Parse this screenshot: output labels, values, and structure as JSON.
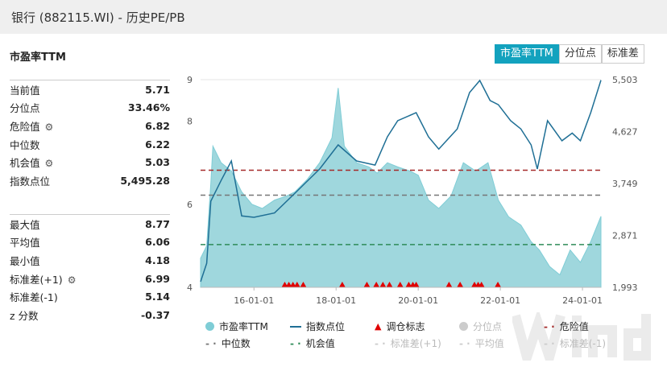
{
  "window": {
    "title": "银行 (882115.WI) - 历史PE/PB"
  },
  "panel": {
    "title": "市盈率TTM"
  },
  "stats_top": [
    {
      "label": "当前值",
      "value": "5.71",
      "gear": false
    },
    {
      "label": "分位点",
      "value": "33.46%",
      "gear": false
    },
    {
      "label": "危险值",
      "value": "6.82",
      "gear": true
    },
    {
      "label": "中位数",
      "value": "6.22",
      "gear": false
    },
    {
      "label": "机会值",
      "value": "5.03",
      "gear": true
    },
    {
      "label": "指数点位",
      "value": "5,495.28",
      "gear": false
    }
  ],
  "stats_bottom": [
    {
      "label": "最大值",
      "value": "8.77",
      "gear": false
    },
    {
      "label": "平均值",
      "value": "6.06",
      "gear": false
    },
    {
      "label": "最小值",
      "value": "4.18",
      "gear": false
    },
    {
      "label": "标准差(+1)",
      "value": "6.99",
      "gear": true
    },
    {
      "label": "标准差(-1)",
      "value": "5.14",
      "gear": false
    },
    {
      "label": "z 分数",
      "value": "-0.37",
      "gear": false
    }
  ],
  "tabs": [
    {
      "label": "市盈率TTM",
      "active": true
    },
    {
      "label": "分位点",
      "active": false
    },
    {
      "label": "标准差",
      "active": false
    }
  ],
  "legend": [
    {
      "label": "市盈率TTM",
      "type": "dot",
      "color": "#7fcdd6",
      "off": false
    },
    {
      "label": "指数点位",
      "type": "line",
      "color": "#1f6f95",
      "off": false
    },
    {
      "label": "调仓标志",
      "type": "tri",
      "color": "#e00000",
      "off": false
    },
    {
      "label": "分位点",
      "type": "dot",
      "color": "#ccc",
      "off": true
    },
    {
      "label": "危险值",
      "type": "dash",
      "color": "#a52a2a",
      "off": false
    },
    {
      "label": "中位数",
      "type": "dash",
      "color": "#777",
      "off": false
    },
    {
      "label": "机会值",
      "type": "dash",
      "color": "#2e8b57",
      "off": false
    },
    {
      "label": "标准差(+1)",
      "type": "dash",
      "color": "#ccc",
      "off": true
    },
    {
      "label": "平均值",
      "type": "dash",
      "color": "#ccc",
      "off": true
    },
    {
      "label": "标准差(-1)",
      "type": "dash",
      "color": "#ccc",
      "off": true
    }
  ],
  "watermark": "Wind",
  "chart_data": {
    "type": "area+line",
    "x_ticks": [
      "16-01-01",
      "18-01-01",
      "20-01-01",
      "22-01-01",
      "24-01-01"
    ],
    "left_ticks": [
      "9",
      "8",
      "6",
      "4"
    ],
    "left_range": [
      4,
      9
    ],
    "right_ticks": [
      "5,503",
      "4,627",
      "3,749",
      "2,871",
      "1,993"
    ],
    "right_range": [
      1993,
      5503
    ],
    "x_range": [
      2014.7,
      2024.45
    ],
    "refs": {
      "danger": 6.82,
      "median": 6.22,
      "opportunity": 5.03
    },
    "pe": [
      [
        2014.7,
        4.7
      ],
      [
        2014.85,
        5.0
      ],
      [
        2014.95,
        6.5
      ],
      [
        2015.0,
        7.4
      ],
      [
        2015.2,
        7.0
      ],
      [
        2015.45,
        6.8
      ],
      [
        2015.7,
        6.3
      ],
      [
        2015.95,
        6.0
      ],
      [
        2016.2,
        5.9
      ],
      [
        2016.5,
        6.1
      ],
      [
        2016.8,
        6.2
      ],
      [
        2017.0,
        6.3
      ],
      [
        2017.3,
        6.6
      ],
      [
        2017.6,
        7.0
      ],
      [
        2017.9,
        7.6
      ],
      [
        2018.05,
        8.8
      ],
      [
        2018.2,
        7.4
      ],
      [
        2018.5,
        7.0
      ],
      [
        2018.8,
        6.9
      ],
      [
        2019.0,
        6.75
      ],
      [
        2019.25,
        7.0
      ],
      [
        2019.5,
        6.9
      ],
      [
        2019.8,
        6.8
      ],
      [
        2020.0,
        6.7
      ],
      [
        2020.25,
        6.1
      ],
      [
        2020.5,
        5.9
      ],
      [
        2020.8,
        6.2
      ],
      [
        2021.1,
        7.0
      ],
      [
        2021.4,
        6.8
      ],
      [
        2021.7,
        7.0
      ],
      [
        2021.95,
        6.1
      ],
      [
        2022.2,
        5.7
      ],
      [
        2022.5,
        5.5
      ],
      [
        2022.75,
        5.1
      ],
      [
        2022.95,
        4.9
      ],
      [
        2023.2,
        4.5
      ],
      [
        2023.45,
        4.3
      ],
      [
        2023.7,
        4.9
      ],
      [
        2023.95,
        4.6
      ],
      [
        2024.2,
        5.1
      ],
      [
        2024.45,
        5.71
      ]
    ],
    "index": [
      [
        2014.7,
        2088
      ],
      [
        2014.85,
        2400
      ],
      [
        2014.95,
        3449
      ],
      [
        2015.2,
        3800
      ],
      [
        2015.45,
        4129
      ],
      [
        2015.7,
        3200
      ],
      [
        2016.0,
        3177
      ],
      [
        2016.5,
        3250
      ],
      [
        2017.0,
        3585
      ],
      [
        2017.6,
        3993
      ],
      [
        2018.05,
        4401
      ],
      [
        2018.5,
        4129
      ],
      [
        2018.95,
        4060
      ],
      [
        2019.25,
        4537
      ],
      [
        2019.5,
        4809
      ],
      [
        2019.95,
        4945
      ],
      [
        2020.25,
        4537
      ],
      [
        2020.5,
        4330
      ],
      [
        2020.95,
        4670
      ],
      [
        2021.25,
        5285
      ],
      [
        2021.5,
        5490
      ],
      [
        2021.75,
        5150
      ],
      [
        2021.95,
        5080
      ],
      [
        2022.25,
        4809
      ],
      [
        2022.5,
        4670
      ],
      [
        2022.75,
        4401
      ],
      [
        2022.9,
        3993
      ],
      [
        2023.15,
        4809
      ],
      [
        2023.5,
        4470
      ],
      [
        2023.75,
        4600
      ],
      [
        2023.95,
        4470
      ],
      [
        2024.2,
        4945
      ],
      [
        2024.45,
        5495
      ]
    ],
    "rebalance": [
      2016.75,
      2016.85,
      2016.95,
      2017.05,
      2017.2,
      2018.15,
      2018.75,
      2018.98,
      2019.14,
      2019.3,
      2019.56,
      2019.77,
      2019.87,
      2019.95,
      2020.75,
      2021.02,
      2021.37,
      2021.46,
      2021.54,
      2021.94
    ]
  }
}
